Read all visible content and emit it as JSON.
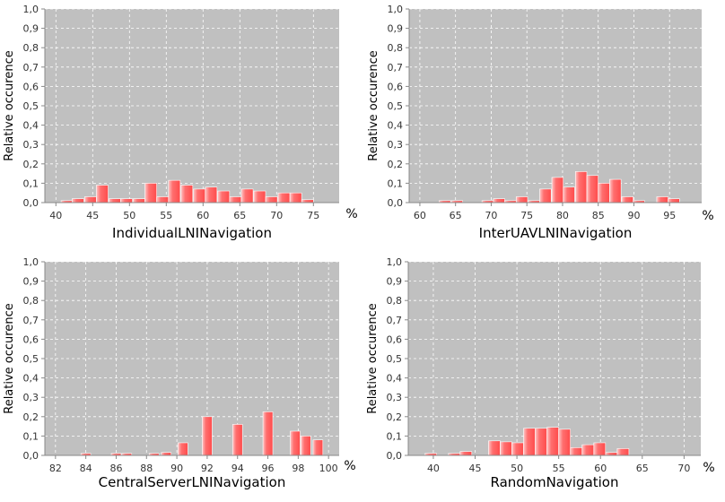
{
  "chart_data": [
    {
      "type": "bar",
      "xlabel": "IndividualLNINavigation",
      "ylabel": "Relative occurence",
      "x_unit": "%",
      "xlim": [
        38.5,
        78.5
      ],
      "ylim": [
        0,
        1.0
      ],
      "xticks": [
        40,
        45,
        50,
        55,
        60,
        65,
        70,
        75
      ],
      "yticks": [
        "0,0",
        "0,1",
        "0,2",
        "0,3",
        "0,4",
        "0,5",
        "0,6",
        "0,7",
        "0,8",
        "0,9",
        "1,0"
      ],
      "bar_width": 1.6,
      "grid": true,
      "x": [
        41.5,
        43,
        44.7,
        46.3,
        48,
        49.6,
        51.3,
        52.9,
        54.5,
        56.1,
        57.8,
        59.5,
        61.1,
        62.8,
        64.4,
        66,
        67.7,
        69.3,
        71,
        72.6,
        74.2,
        75.8
      ],
      "values": [
        0.01,
        0.02,
        0.03,
        0.09,
        0.02,
        0.02,
        0.02,
        0.1,
        0.03,
        0.115,
        0.09,
        0.07,
        0.08,
        0.06,
        0.03,
        0.07,
        0.06,
        0.03,
        0.05,
        0.05,
        0.015,
        0.0
      ]
    },
    {
      "type": "bar",
      "xlabel": "InterUAVLNINavigation",
      "ylabel": "Relative occurence",
      "x_unit": "%",
      "xlim": [
        58.5,
        99.5
      ],
      "ylim": [
        0,
        1.0
      ],
      "xticks": [
        60,
        65,
        70,
        75,
        80,
        85,
        90,
        95
      ],
      "yticks": [
        "0,0",
        "0,1",
        "0,2",
        "0,3",
        "0,4",
        "0,5",
        "0,6",
        "0,7",
        "0,8",
        "0,9",
        "1,0"
      ],
      "bar_width": 1.6,
      "grid": true,
      "x": [
        63.5,
        65.2,
        69.5,
        71.1,
        72.7,
        74.3,
        76.0,
        77.6,
        79.3,
        80.9,
        82.6,
        84.2,
        85.8,
        87.4,
        89.1,
        90.7,
        94.0,
        95.6
      ],
      "values": [
        0.01,
        0.01,
        0.01,
        0.02,
        0.01,
        0.03,
        0.01,
        0.07,
        0.13,
        0.08,
        0.16,
        0.14,
        0.1,
        0.12,
        0.03,
        0.01,
        0.03,
        0.02
      ]
    },
    {
      "type": "bar",
      "xlabel": "CentralServerLNINavigation",
      "ylabel": "Relative occurence",
      "x_unit": "%",
      "xlim": [
        81.3,
        100.7
      ],
      "ylim": [
        0,
        1.0
      ],
      "xticks": [
        82,
        84,
        86,
        88,
        90,
        92,
        94,
        96,
        98,
        100
      ],
      "yticks": [
        "0,0",
        "0,1",
        "0,2",
        "0,3",
        "0,4",
        "0,5",
        "0,6",
        "0,7",
        "0,8",
        "0,9",
        "1,0"
      ],
      "bar_width": 0.65,
      "grid": true,
      "x": [
        84.0,
        86.0,
        86.7,
        88.5,
        89.3,
        90.4,
        92.0,
        94.0,
        96.0,
        97.8,
        98.5,
        99.3
      ],
      "values": [
        0.01,
        0.01,
        0.01,
        0.01,
        0.015,
        0.065,
        0.2,
        0.16,
        0.225,
        0.125,
        0.1,
        0.08
      ]
    },
    {
      "type": "bar",
      "xlabel": "RandomNavigation",
      "ylabel": "Relative occurence",
      "x_unit": "%",
      "xlim": [
        37,
        72
      ],
      "ylim": [
        0,
        1.0
      ],
      "xticks": [
        40,
        45,
        50,
        55,
        60,
        65,
        70
      ],
      "yticks": [
        "0,0",
        "0,1",
        "0,2",
        "0,3",
        "0,4",
        "0,5",
        "0,6",
        "0,7",
        "0,8",
        "0,9",
        "1,0"
      ],
      "bar_width": 1.4,
      "grid": true,
      "x": [
        39.7,
        42.5,
        43.9,
        47.3,
        48.7,
        50.1,
        51.5,
        52.9,
        54.3,
        55.7,
        57.1,
        58.5,
        59.9,
        61.3,
        62.7,
        64.1
      ],
      "values": [
        0.01,
        0.01,
        0.02,
        0.075,
        0.07,
        0.065,
        0.14,
        0.14,
        0.145,
        0.135,
        0.04,
        0.055,
        0.065,
        0.015,
        0.035,
        0.0
      ]
    }
  ]
}
